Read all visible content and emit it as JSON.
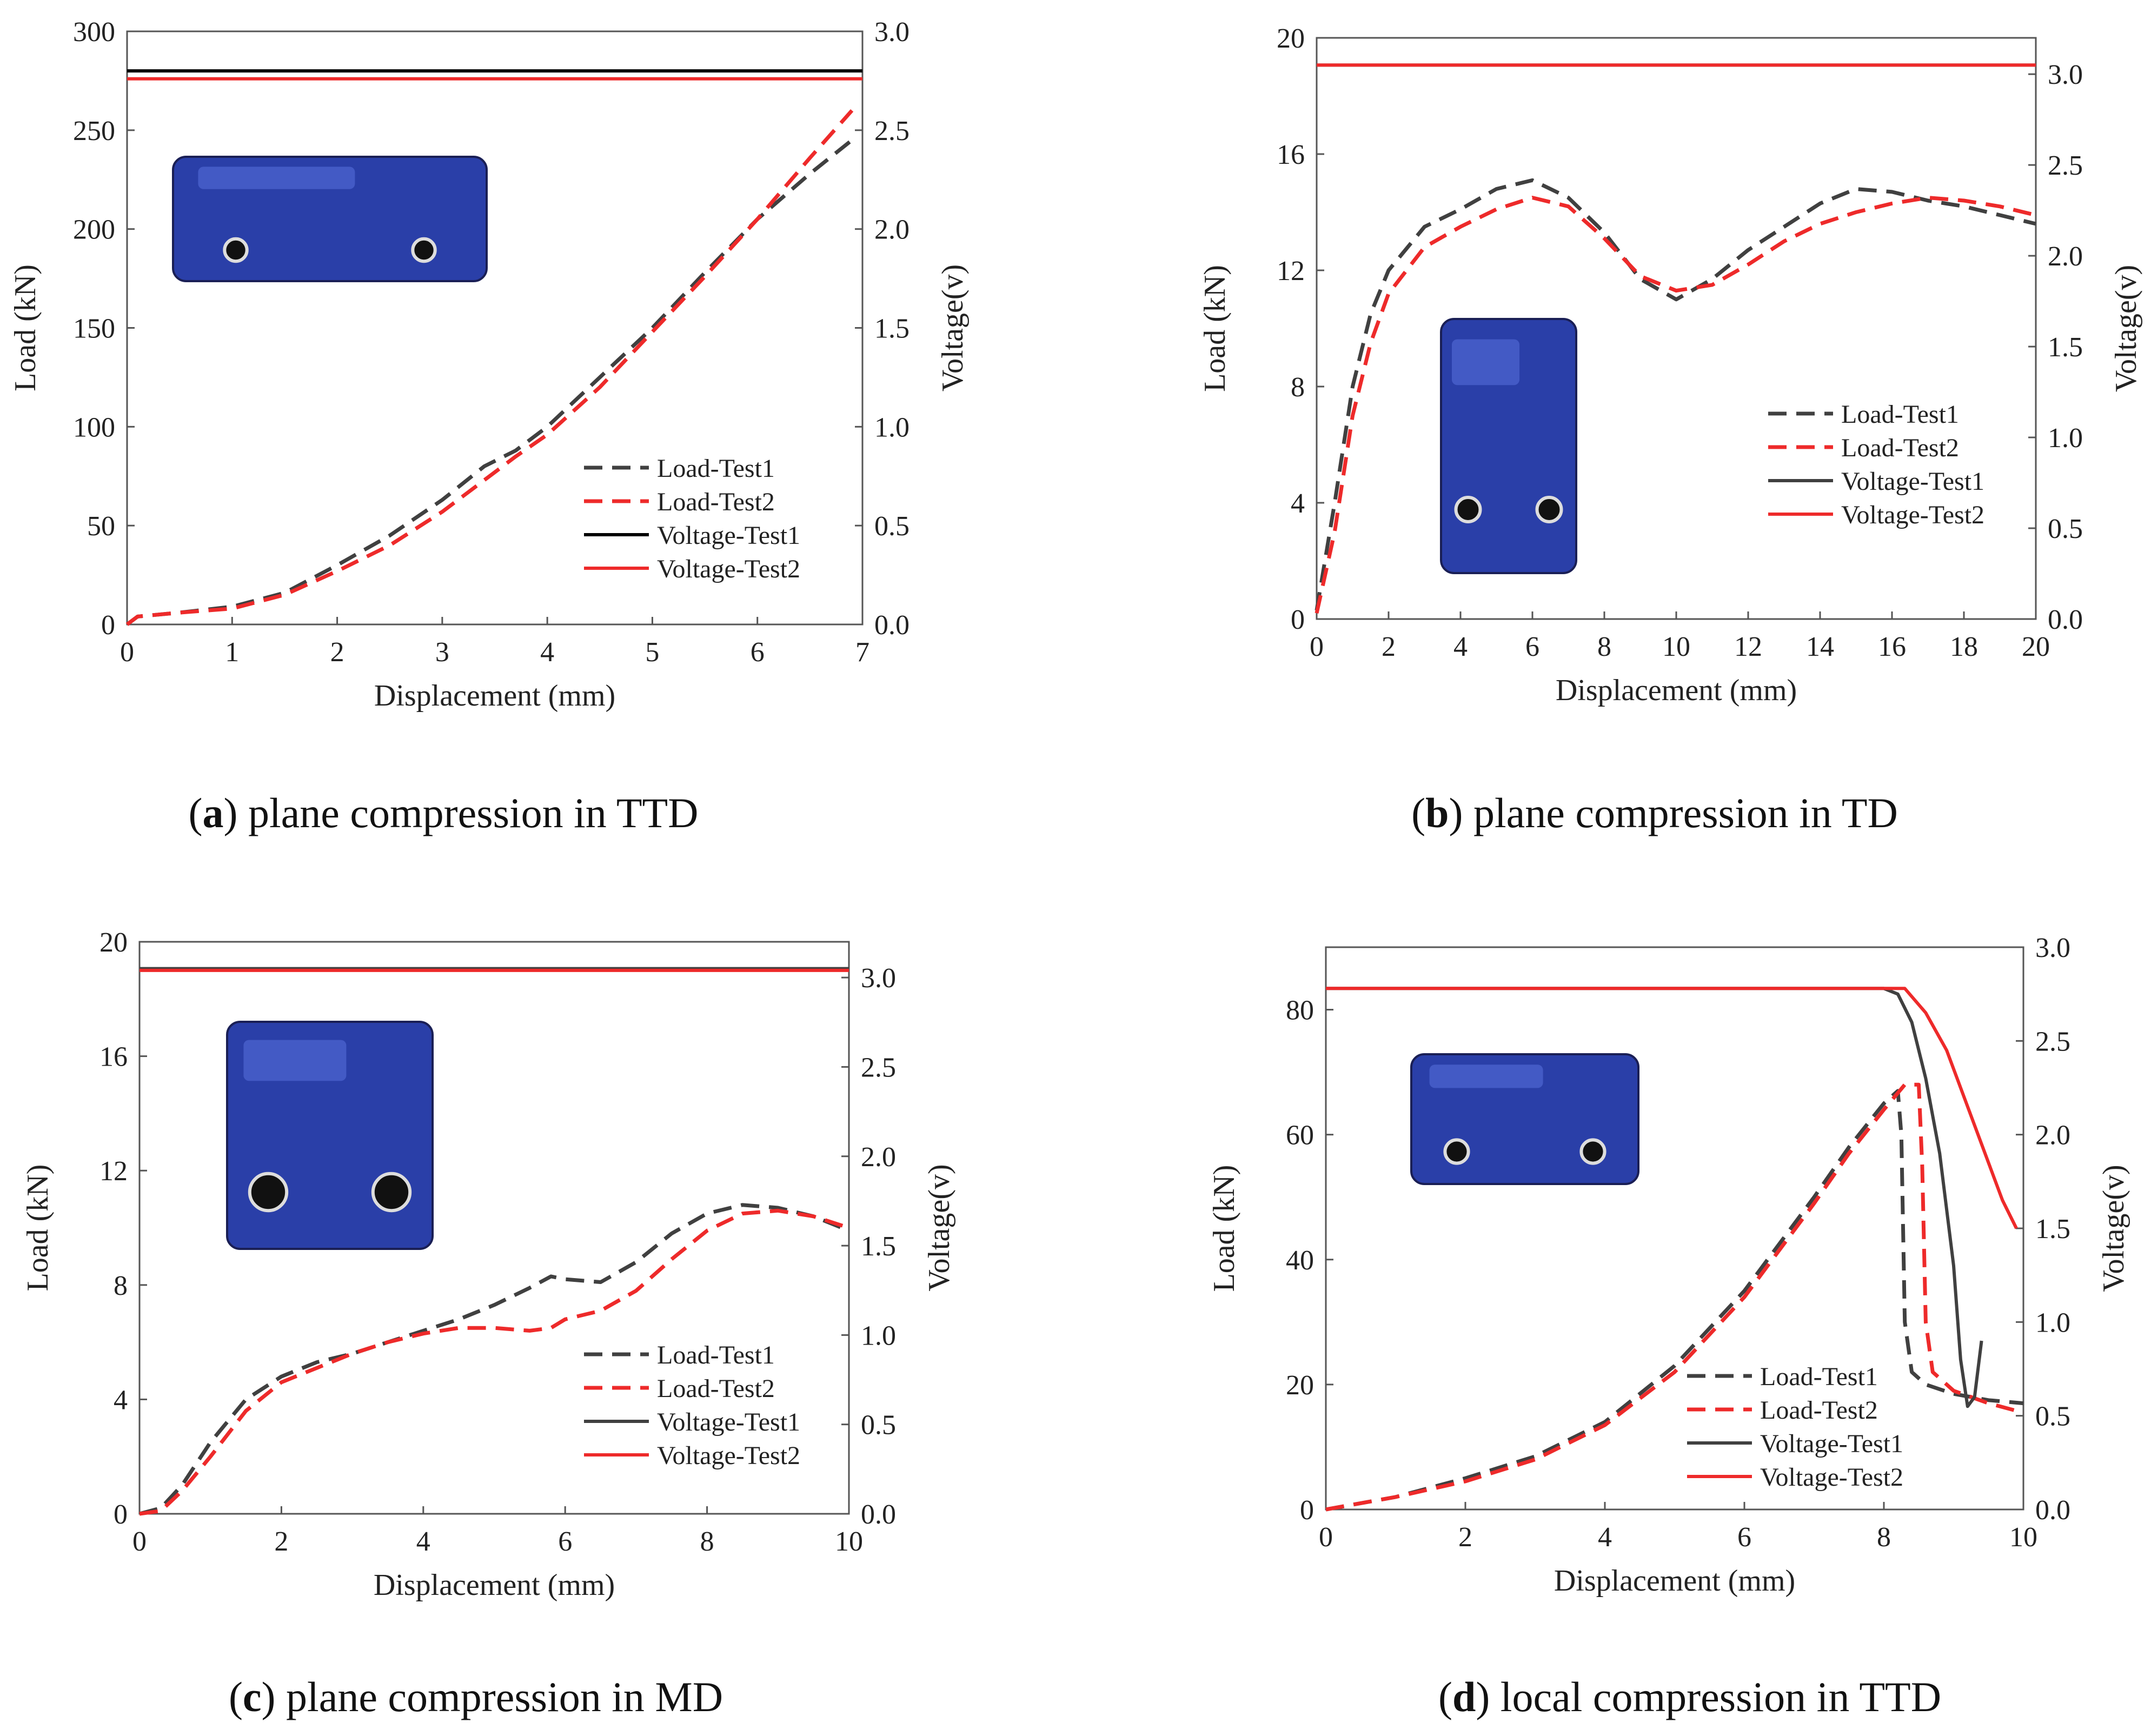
{
  "colors": {
    "test1": "#404040",
    "test2": "#ee2a2a",
    "axis": "#555555",
    "text": "#222222",
    "battery": "#2a3fa8"
  },
  "icons": {
    "cell_photo": "battery-cell-icon"
  },
  "chart_data": [
    {
      "type": "line",
      "caption_letter": "a",
      "caption_text": ") plane compression in TTD",
      "xlabel": "Displacement (mm)",
      "ylabel": "Load (kN)",
      "y2label": "Voltage(v)",
      "xlim": [
        0,
        7
      ],
      "ylim": [
        0,
        300
      ],
      "y2lim": [
        0,
        3
      ],
      "xticks": [
        0,
        1,
        2,
        3,
        4,
        5,
        6,
        7
      ],
      "yticks": [
        0,
        50,
        100,
        150,
        200,
        250,
        300
      ],
      "y2ticks": [
        "0.0",
        "0.5",
        "1.0",
        "1.5",
        "2.0",
        "2.5",
        "3.0"
      ],
      "legend": [
        "Load-Test1",
        "Load-Test2",
        "Voltage-Test1",
        "Voltage-Test2"
      ],
      "legend_position": "lower-right",
      "grid": false,
      "photo": "battery cell lying flat",
      "series": [
        {
          "name": "Load-Test1",
          "axis": "left",
          "style": "dashed",
          "color": "#404040",
          "x": [
            0,
            0.1,
            0.5,
            1,
            1.5,
            2,
            2.5,
            3,
            3.4,
            3.7,
            4,
            4.5,
            5,
            5.5,
            6,
            6.5,
            6.9
          ],
          "y": [
            0,
            4,
            6,
            9,
            16,
            30,
            45,
            63,
            80,
            88,
            100,
            125,
            150,
            178,
            205,
            228,
            245
          ]
        },
        {
          "name": "Load-Test2",
          "axis": "left",
          "style": "dashed",
          "color": "#ee2a2a",
          "x": [
            0,
            0.1,
            0.5,
            1,
            1.5,
            2,
            2.5,
            3,
            3.4,
            3.7,
            4,
            4.5,
            5,
            5.5,
            6,
            6.5,
            6.9
          ],
          "y": [
            0,
            4,
            6,
            8,
            15,
            27,
            40,
            57,
            73,
            85,
            96,
            120,
            148,
            176,
            205,
            236,
            260
          ]
        },
        {
          "name": "Voltage-Test1",
          "axis": "right",
          "style": "solid",
          "color": "#000000",
          "x": [
            0,
            7
          ],
          "y": [
            2.8,
            2.8
          ]
        },
        {
          "name": "Voltage-Test2",
          "axis": "right",
          "style": "solid",
          "color": "#ee2a2a",
          "x": [
            0,
            7
          ],
          "y": [
            2.76,
            2.76
          ]
        }
      ]
    },
    {
      "type": "line",
      "caption_letter": "b",
      "caption_text": ") plane compression in TD",
      "xlabel": "Displacement (mm)",
      "ylabel": "Load (kN)",
      "y2label": "Voltage(v)",
      "xlim": [
        0,
        20
      ],
      "ylim": [
        0,
        20
      ],
      "y2lim": [
        0,
        3.2
      ],
      "xticks": [
        0,
        2,
        4,
        6,
        8,
        10,
        12,
        14,
        16,
        18,
        20
      ],
      "yticks": [
        0,
        4,
        8,
        12,
        16,
        20
      ],
      "y2ticks": [
        "0.0",
        "0.5",
        "1.0",
        "1.5",
        "2.0",
        "2.5",
        "3.0"
      ],
      "legend": [
        "Load-Test1",
        "Load-Test2",
        "Voltage-Test1",
        "Voltage-Test2"
      ],
      "legend_position": "center-right",
      "grid": false,
      "photo": "battery cell standing on edge",
      "series": [
        {
          "name": "Load-Test1",
          "axis": "left",
          "style": "dashed",
          "color": "#404040",
          "x": [
            0,
            0.5,
            1,
            1.5,
            2,
            3,
            4,
            5,
            6,
            7,
            8,
            9,
            10,
            11,
            12,
            13,
            14,
            15,
            16,
            17,
            18,
            19,
            20
          ],
          "y": [
            0.3,
            4,
            8,
            10.5,
            12,
            13.5,
            14.1,
            14.8,
            15.1,
            14.5,
            13.3,
            11.7,
            11.0,
            11.7,
            12.7,
            13.5,
            14.3,
            14.8,
            14.7,
            14.4,
            14.2,
            13.9,
            13.6
          ]
        },
        {
          "name": "Load-Test2",
          "axis": "left",
          "style": "dashed",
          "color": "#ee2a2a",
          "x": [
            0,
            0.5,
            1,
            1.5,
            2,
            3,
            4,
            5,
            6,
            7,
            8,
            9,
            10,
            11,
            12,
            13,
            14,
            15,
            16,
            17,
            18,
            19,
            20
          ],
          "y": [
            0.2,
            3,
            7,
            9.5,
            11.2,
            12.8,
            13.5,
            14.1,
            14.5,
            14.2,
            13.1,
            11.8,
            11.3,
            11.5,
            12.2,
            13.0,
            13.6,
            14.0,
            14.3,
            14.5,
            14.4,
            14.2,
            13.9
          ]
        },
        {
          "name": "Voltage-Test1",
          "axis": "right",
          "style": "solid",
          "color": "#404040",
          "x": [
            0,
            20
          ],
          "y": [
            3.05,
            3.05
          ]
        },
        {
          "name": "Voltage-Test2",
          "axis": "right",
          "style": "solid",
          "color": "#ee2a2a",
          "x": [
            0,
            20
          ],
          "y": [
            3.05,
            3.05
          ]
        }
      ]
    },
    {
      "type": "line",
      "caption_letter": "c",
      "caption_text": ") plane compression in MD",
      "xlabel": "Displacement (mm)",
      "ylabel": "Load (kN)",
      "y2label": "Voltage(v)",
      "xlim": [
        0,
        10
      ],
      "ylim": [
        0,
        20
      ],
      "y2lim": [
        0,
        3.2
      ],
      "xticks": [
        0,
        2,
        4,
        6,
        8,
        10
      ],
      "yticks": [
        0,
        4,
        8,
        12,
        16,
        20
      ],
      "y2ticks": [
        "0.0",
        "0.5",
        "1.0",
        "1.5",
        "2.0",
        "2.5",
        "3.0"
      ],
      "legend": [
        "Load-Test1",
        "Load-Test2",
        "Voltage-Test1",
        "Voltage-Test2"
      ],
      "legend_position": "lower-right",
      "grid": false,
      "photo": "battery cell standing upright",
      "series": [
        {
          "name": "Load-Test1",
          "axis": "left",
          "style": "dashed",
          "color": "#404040",
          "x": [
            0,
            0.3,
            0.6,
            1,
            1.5,
            2,
            2.5,
            3,
            3.5,
            4,
            4.5,
            5,
            5.5,
            5.8,
            6,
            6.5,
            7,
            7.5,
            8,
            8.5,
            9,
            9.5,
            10
          ],
          "y": [
            0,
            0.2,
            1,
            2.5,
            4,
            4.8,
            5.3,
            5.6,
            6.0,
            6.4,
            6.8,
            7.3,
            7.9,
            8.3,
            8.2,
            8.1,
            8.8,
            9.8,
            10.5,
            10.8,
            10.7,
            10.4,
            9.9
          ]
        },
        {
          "name": "Load-Test2",
          "axis": "left",
          "style": "dashed",
          "color": "#ee2a2a",
          "x": [
            0,
            0.3,
            0.6,
            1,
            1.5,
            2,
            2.5,
            3,
            3.5,
            4,
            4.5,
            5,
            5.5,
            5.8,
            6,
            6.5,
            7,
            7.5,
            8,
            8.5,
            9,
            9.5,
            10
          ],
          "y": [
            0,
            0.1,
            0.8,
            2.0,
            3.6,
            4.6,
            5.1,
            5.6,
            6.0,
            6.3,
            6.5,
            6.5,
            6.4,
            6.5,
            6.8,
            7.1,
            7.8,
            8.9,
            9.9,
            10.5,
            10.6,
            10.4,
            10.0
          ]
        },
        {
          "name": "Voltage-Test1",
          "axis": "right",
          "style": "solid",
          "color": "#404040",
          "x": [
            0,
            10
          ],
          "y": [
            3.05,
            3.05
          ]
        },
        {
          "name": "Voltage-Test2",
          "axis": "right",
          "style": "solid",
          "color": "#ee2a2a",
          "x": [
            0,
            10
          ],
          "y": [
            3.04,
            3.04
          ]
        }
      ]
    },
    {
      "type": "line",
      "caption_letter": "d",
      "caption_text": ") local compression in TTD",
      "xlabel": "Displacement (mm)",
      "ylabel": "Load (kN)",
      "y2label": "Voltage(v)",
      "xlim": [
        0,
        10
      ],
      "ylim": [
        0,
        90
      ],
      "y2lim": [
        0,
        3
      ],
      "xticks": [
        0,
        2,
        4,
        6,
        8,
        10
      ],
      "yticks": [
        0,
        20,
        40,
        60,
        80
      ],
      "y2ticks": [
        "0.0",
        "0.5",
        "1.0",
        "1.5",
        "2.0",
        "2.5",
        "3.0"
      ],
      "legend": [
        "Load-Test1",
        "Load-Test2",
        "Voltage-Test1",
        "Voltage-Test2"
      ],
      "legend_position": "lower-right",
      "grid": false,
      "photo": "locally indented battery cell",
      "series": [
        {
          "name": "Load-Test1",
          "axis": "left",
          "style": "dashed",
          "color": "#404040",
          "x": [
            0,
            1,
            2,
            3,
            4,
            5,
            6,
            7,
            7.5,
            8,
            8.2,
            8.25,
            8.3,
            8.4,
            8.6,
            9,
            9.5,
            10
          ],
          "y": [
            0,
            2,
            5,
            8.5,
            14,
            23,
            35,
            50,
            58,
            65,
            67,
            60,
            30,
            22,
            20,
            18.5,
            17.5,
            17
          ]
        },
        {
          "name": "Load-Test2",
          "axis": "left",
          "style": "dashed",
          "color": "#ee2a2a",
          "x": [
            0,
            1,
            2,
            3,
            4,
            5,
            6,
            7,
            7.5,
            8,
            8.3,
            8.5,
            8.55,
            8.6,
            8.7,
            9,
            9.5,
            10
          ],
          "y": [
            0,
            2,
            4.5,
            8,
            13.5,
            22,
            34,
            49,
            57,
            64,
            68,
            68,
            55,
            30,
            22,
            19,
            17,
            15.5
          ]
        },
        {
          "name": "Voltage-Test1",
          "axis": "right",
          "style": "solid",
          "color": "#404040",
          "x": [
            0,
            8,
            8.2,
            8.4,
            8.6,
            8.8,
            9.0,
            9.1,
            9.2,
            9.3,
            9.4
          ],
          "y": [
            2.78,
            2.78,
            2.75,
            2.6,
            2.3,
            1.9,
            1.3,
            0.8,
            0.55,
            0.6,
            0.9
          ]
        },
        {
          "name": "Voltage-Test2",
          "axis": "right",
          "style": "solid",
          "color": "#ee2a2a",
          "x": [
            0,
            8,
            8.3,
            8.6,
            8.9,
            9.2,
            9.5,
            9.7,
            9.9
          ],
          "y": [
            2.78,
            2.78,
            2.78,
            2.65,
            2.45,
            2.15,
            1.85,
            1.65,
            1.5
          ]
        }
      ]
    }
  ]
}
